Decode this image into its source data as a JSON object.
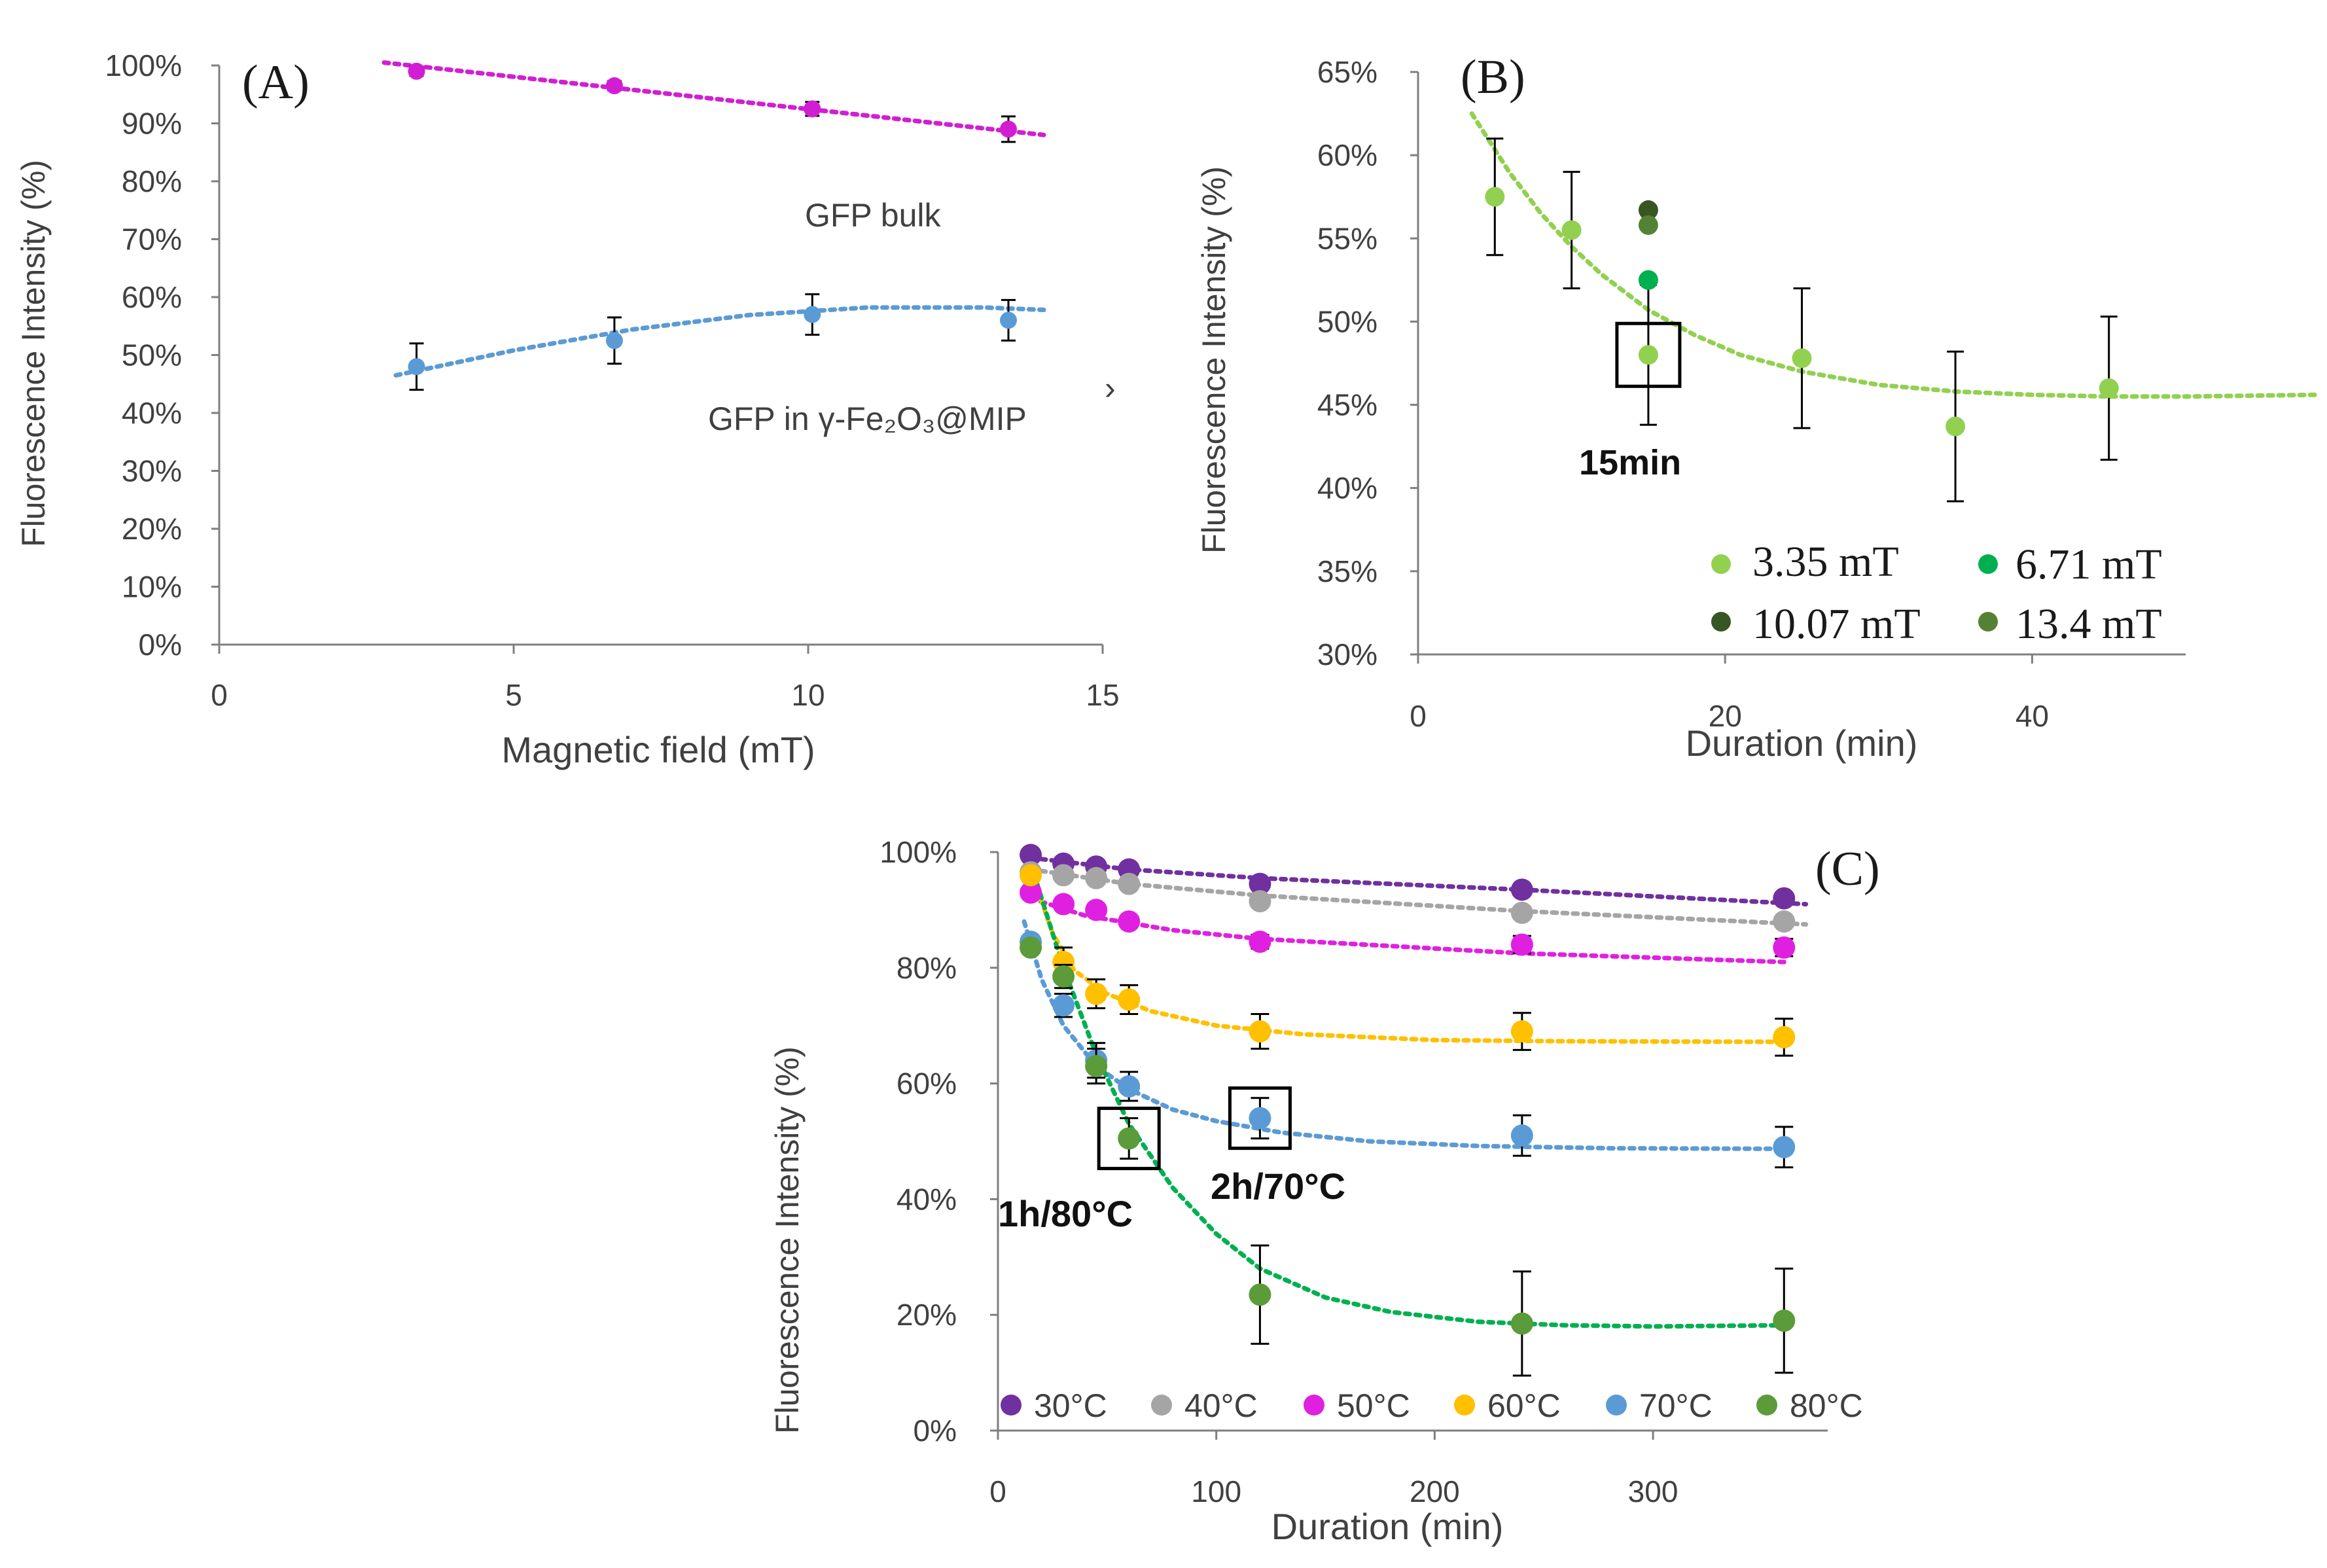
{
  "chart_data": [
    {
      "type": "scatter",
      "panel_label": "(A)",
      "xlabel": "Magnetic field (mT)",
      "ylabel": "Fluorescence Intensity (%)",
      "xlim": [
        0,
        15
      ],
      "ylim": [
        0,
        100
      ],
      "x_ticks": [
        0,
        5,
        10,
        15
      ],
      "y_ticks": [
        0,
        10,
        20,
        30,
        40,
        50,
        60,
        70,
        80,
        90,
        100
      ],
      "x_tick_labels": [
        "0",
        "5",
        "10",
        "15"
      ],
      "y_tick_labels": [
        "0%",
        "10%",
        "20%",
        "30%",
        "40%",
        "50%",
        "60%",
        "70%",
        "80%",
        "90%",
        "100%"
      ],
      "series": [
        {
          "name": "GFP bulk",
          "color": "#d21ed2",
          "x": [
            3.35,
            6.71,
            10.07,
            13.4
          ],
          "values": [
            99,
            96.5,
            92.5,
            89
          ],
          "errors": [
            0.8,
            0.8,
            1.2,
            2.2
          ],
          "trend": {
            "x": [
              2.8,
              14.0
            ],
            "y": [
              100.5,
              88
            ]
          }
        },
        {
          "name": "GFP in γ-Fe₂O₃@MIP",
          "color": "#5b9bd5",
          "x": [
            3.35,
            6.71,
            10.07,
            13.4
          ],
          "values": [
            48,
            52.5,
            57,
            56
          ],
          "errors": [
            4,
            4,
            3.5,
            3.5
          ],
          "trend": {
            "x": [
              3.0,
              5.0,
              7.0,
              9.0,
              11.0,
              13.0,
              14.0
            ],
            "y": [
              46.5,
              50.8,
              54.4,
              56.9,
              58.2,
              58.2,
              57.8
            ]
          }
        }
      ],
      "annotations": [
        "GFP bulk",
        "GFP in γ-Fe₂O₃@MIP",
        "›"
      ]
    },
    {
      "type": "scatter",
      "panel_label": "(B)",
      "xlabel": "Duration (min)",
      "ylabel": "Fluorescence Intensity (%)",
      "xlim": [
        0,
        50
      ],
      "ylim": [
        30,
        65
      ],
      "x_ticks": [
        0,
        20,
        40
      ],
      "y_ticks": [
        30,
        35,
        40,
        45,
        50,
        55,
        60,
        65
      ],
      "x_tick_labels": [
        "0",
        "20",
        "40"
      ],
      "y_tick_labels": [
        "30%",
        "35%",
        "40%",
        "45%",
        "50%",
        "55%",
        "60%",
        "65%"
      ],
      "series": [
        {
          "name": "3.35 mT",
          "color": "#92d050",
          "x": [
            5,
            10,
            15,
            25,
            35,
            45
          ],
          "values": [
            57.5,
            55.5,
            48,
            47.8,
            43.7,
            46
          ],
          "errors": [
            3.5,
            3.5,
            4.2,
            4.2,
            4.5,
            4.3
          ]
        },
        {
          "name": "6.71 mT",
          "color": "#00b050",
          "x": [
            15
          ],
          "values": [
            52.5
          ],
          "errors": [
            0
          ]
        },
        {
          "name": "10.07 mT",
          "color": "#375623",
          "x": [
            15
          ],
          "values": [
            56.7
          ],
          "errors": [
            0
          ]
        },
        {
          "name": "13.4 mT",
          "color": "#548235",
          "x": [
            15
          ],
          "values": [
            55.8
          ],
          "errors": [
            0
          ]
        }
      ],
      "trend": {
        "color": "#92d050",
        "x": [
          3.5,
          6,
          8,
          10,
          12,
          15,
          18,
          21,
          25,
          30,
          35,
          40,
          45,
          50,
          58.5
        ],
        "y": [
          62.5,
          58.9,
          56.5,
          54.5,
          52.8,
          50.7,
          49.2,
          48.0,
          47.0,
          46.2,
          45.8,
          45.6,
          45.5,
          45.5,
          45.6
        ]
      },
      "annotations": [
        "15min"
      ],
      "highlight": {
        "x": 15,
        "y": 48
      }
    },
    {
      "type": "scatter",
      "panel_label": "(C)",
      "xlabel": "Duration (min)",
      "ylabel": "Fluorescence Intensity (%)",
      "xlim": [
        0,
        380
      ],
      "ylim": [
        0,
        100
      ],
      "x_ticks": [
        0,
        100,
        200,
        300
      ],
      "y_ticks": [
        0,
        20,
        40,
        60,
        80,
        100
      ],
      "x_tick_labels": [
        "0",
        "100",
        "200",
        "300"
      ],
      "y_tick_labels": [
        "0%",
        "20%",
        "40%",
        "60%",
        "80%",
        "100%"
      ],
      "series": [
        {
          "name": "30°C",
          "color": "#7030a0",
          "x": [
            15,
            30,
            45,
            60,
            120,
            240,
            360
          ],
          "values": [
            99.5,
            98,
            97.5,
            97,
            94.5,
            93.5,
            92
          ],
          "errors": [
            0,
            0,
            0,
            0,
            0,
            0,
            0
          ]
        },
        {
          "name": "40°C",
          "color": "#a5a5a5",
          "x": [
            15,
            30,
            45,
            60,
            120,
            240,
            360
          ],
          "values": [
            96.5,
            96,
            95.5,
            94.5,
            91.5,
            89.5,
            88
          ],
          "errors": [
            0,
            0,
            0,
            0,
            0,
            0,
            0
          ]
        },
        {
          "name": "50°C",
          "color": "#e020e0",
          "x": [
            15,
            30,
            45,
            60,
            120,
            240,
            360
          ],
          "values": [
            93,
            91,
            90,
            88,
            84.5,
            84,
            83.5
          ],
          "errors": [
            0,
            0,
            0,
            0,
            1.2,
            1.5,
            1.5
          ]
        },
        {
          "name": "60°C",
          "color": "#ffc000",
          "x": [
            15,
            30,
            45,
            60,
            120,
            240,
            360
          ],
          "values": [
            96,
            81,
            75.5,
            74.5,
            69,
            69,
            68
          ],
          "errors": [
            0,
            2.5,
            2.5,
            2.5,
            3,
            3.2,
            3.2
          ]
        },
        {
          "name": "70°C",
          "color": "#5b9bd5",
          "x": [
            15,
            30,
            45,
            60,
            120,
            240,
            360
          ],
          "values": [
            84.5,
            73.5,
            64,
            59.5,
            54,
            51,
            49
          ],
          "errors": [
            0,
            2,
            3,
            2.5,
            3.5,
            3.5,
            3.5
          ]
        },
        {
          "name": "80°C",
          "color": "#5b9b3a",
          "x": [
            15,
            30,
            45,
            60,
            120,
            240,
            360
          ],
          "values": [
            83.5,
            78.5,
            63,
            50.5,
            23.5,
            18.5,
            19
          ],
          "errors": [
            0,
            2,
            3,
            3.5,
            8.5,
            9,
            9
          ]
        }
      ],
      "trends": [
        {
          "color": "#7030a0",
          "x": [
            15,
            60,
            120,
            240,
            370
          ],
          "y": [
            99,
            97,
            95.5,
            93.5,
            91
          ]
        },
        {
          "color": "#a5a5a5",
          "x": [
            15,
            60,
            120,
            240,
            370
          ],
          "y": [
            97,
            94.5,
            92.5,
            89.8,
            87.5
          ]
        },
        {
          "color": "#e020e0",
          "x": [
            15,
            40,
            80,
            120,
            240,
            360
          ],
          "y": [
            92,
            89,
            86.5,
            85,
            82.5,
            81
          ]
        },
        {
          "color": "#ffc000",
          "x": [
            15,
            25,
            35,
            50,
            70,
            100,
            140,
            200,
            260,
            360
          ],
          "y": [
            97,
            86,
            79.5,
            75.5,
            72.5,
            70,
            68.5,
            67.5,
            67.3,
            67.2
          ]
        },
        {
          "color": "#5b9bd5",
          "x": [
            12,
            20,
            30,
            45,
            60,
            80,
            100,
            130,
            170,
            220,
            280,
            360
          ],
          "y": [
            88,
            78,
            70,
            63,
            59,
            55.5,
            53.5,
            51.5,
            50,
            49.2,
            48.8,
            48.7
          ]
        },
        {
          "color": "#00b050",
          "x": [
            15,
            30,
            45,
            60,
            80,
            100,
            120,
            150,
            180,
            220,
            260,
            300,
            360
          ],
          "y": [
            98,
            80,
            65,
            53,
            42,
            34,
            28,
            23,
            20.5,
            18.8,
            18.2,
            18,
            18.2
          ]
        }
      ],
      "annotations": [
        "1h/80°C",
        "2h/70°C"
      ],
      "highlights": [
        {
          "x": 60,
          "y": 50.5
        },
        {
          "x": 120,
          "y": 54
        }
      ]
    }
  ]
}
